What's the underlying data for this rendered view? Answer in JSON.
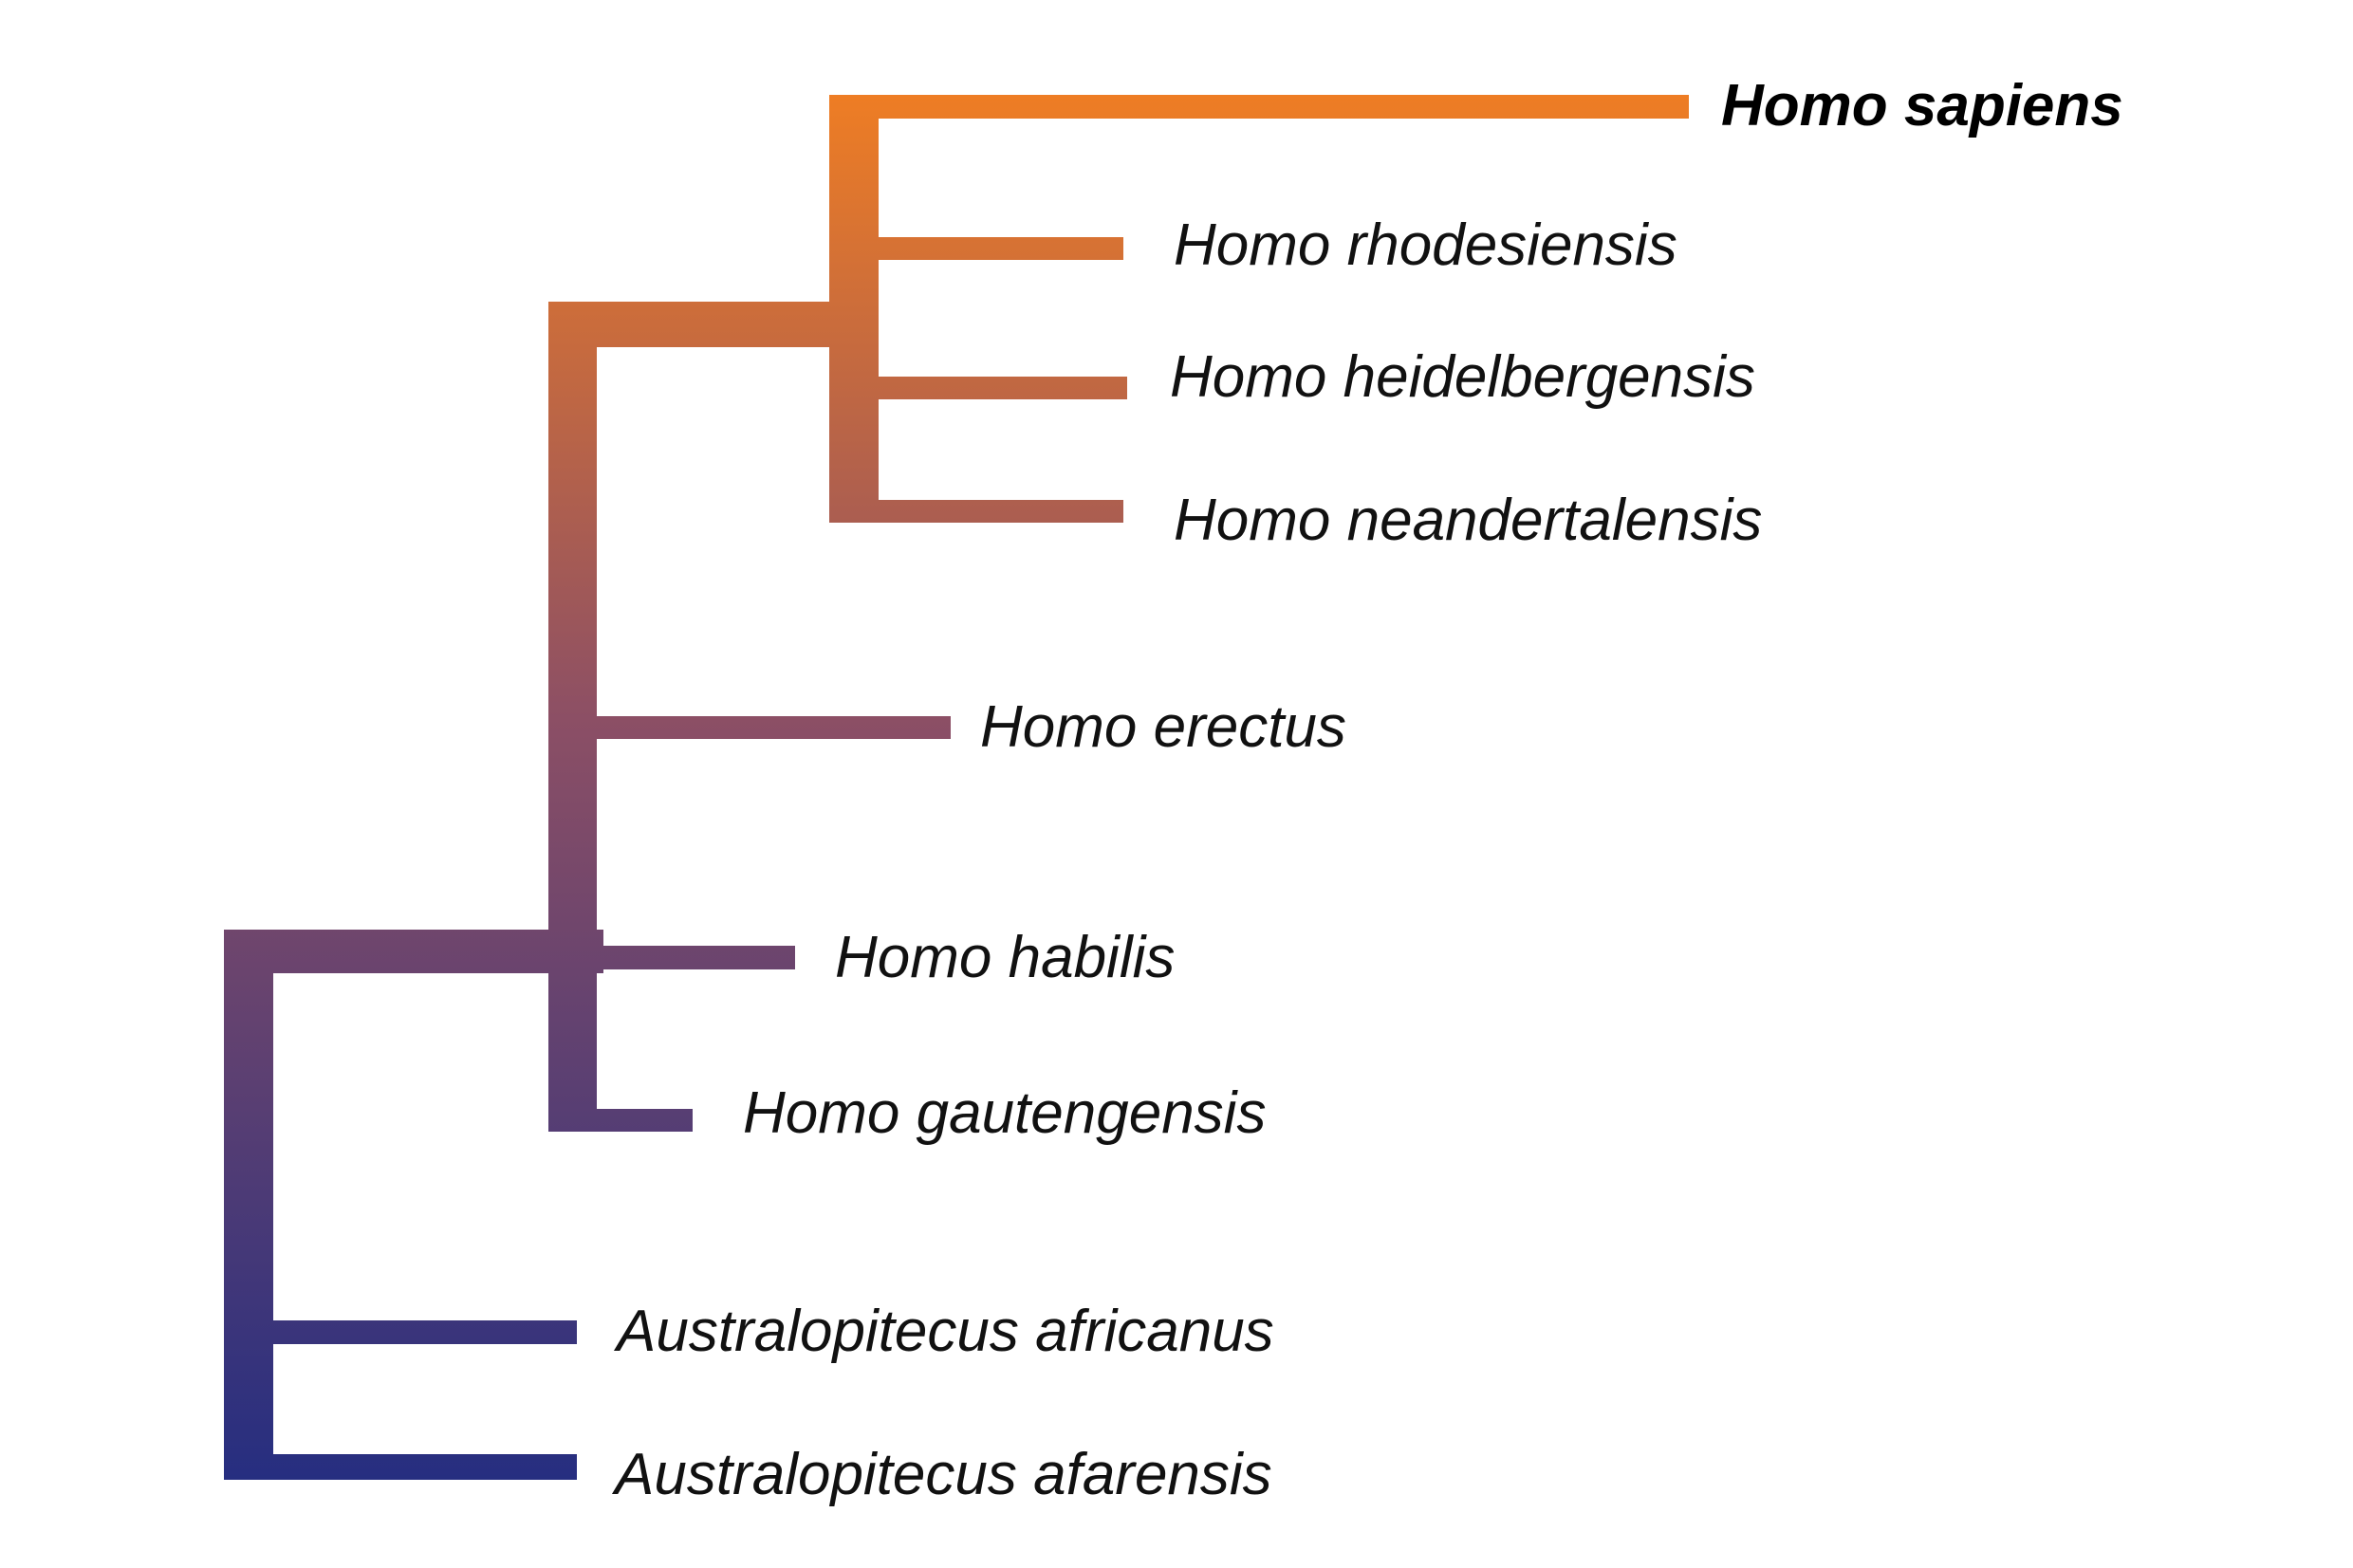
{
  "diagram": {
    "type": "cladogram",
    "gradient_colors": {
      "top": "#ee7d24",
      "middle": "#8c4f65",
      "bottom": "#262e80"
    },
    "taxa": [
      {
        "id": "homo-sapiens",
        "label": "Homo sapiens",
        "highlighted": true
      },
      {
        "id": "homo-rhodesiensis",
        "label": "Homo rhodesiensis",
        "highlighted": false
      },
      {
        "id": "homo-heidelbergensis",
        "label": "Homo heidelbergensis",
        "highlighted": false
      },
      {
        "id": "homo-neandertalensis",
        "label": "Homo neandertalensis",
        "highlighted": false
      },
      {
        "id": "homo-erectus",
        "label": "Homo erectus",
        "highlighted": false
      },
      {
        "id": "homo-habilis",
        "label": "Homo habilis",
        "highlighted": false
      },
      {
        "id": "homo-gautengensis",
        "label": "Homo gautengensis",
        "highlighted": false
      },
      {
        "id": "australopitecus-africanus",
        "label": "Australopitecus africanus",
        "highlighted": false
      },
      {
        "id": "australopitecus-afarensis",
        "label": "Australopitecus afarensis",
        "highlighted": false
      }
    ]
  }
}
